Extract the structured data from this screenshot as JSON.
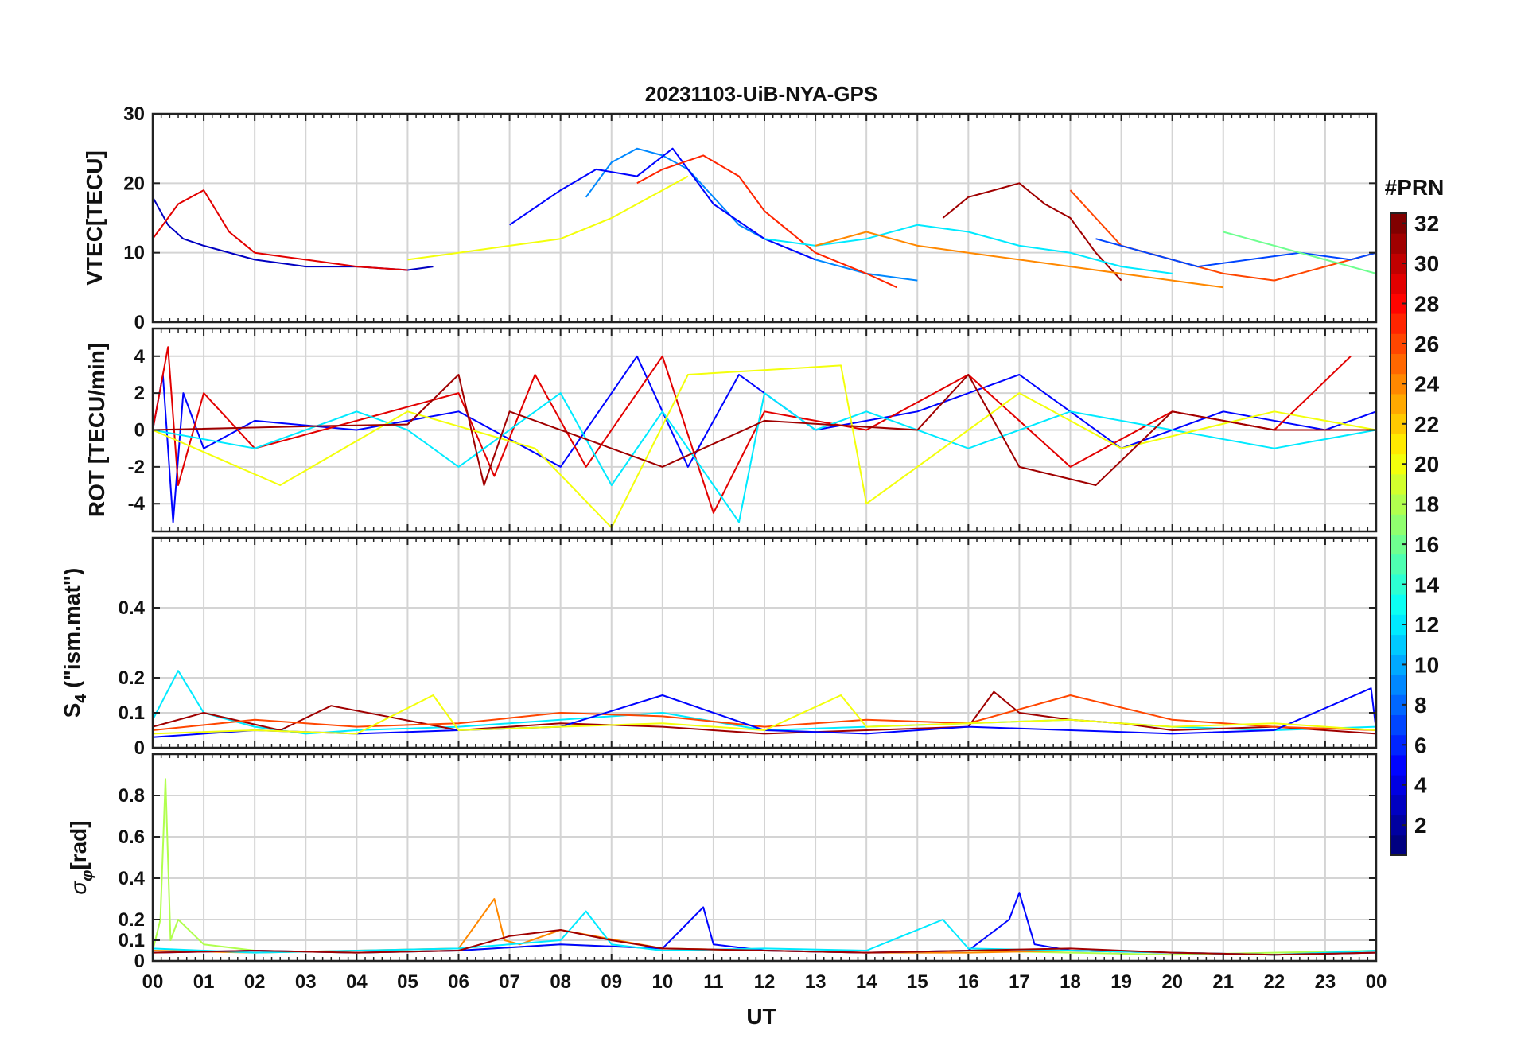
{
  "figure": {
    "title": "20231103-UiB-NYA-GPS",
    "xlabel": "UT",
    "colorbar_title": "#PRN"
  },
  "chart_data": [
    {
      "type": "line",
      "panel": "vtec",
      "ylabel": "VTEC[TECU]",
      "ylim": [
        0,
        30
      ],
      "yticks": [
        0,
        10,
        20,
        30
      ],
      "xlim": [
        0,
        24
      ],
      "xtick_labels": [
        "00",
        "01",
        "02",
        "03",
        "04",
        "05",
        "06",
        "07",
        "08",
        "09",
        "10",
        "11",
        "12",
        "13",
        "14",
        "15",
        "16",
        "17",
        "18",
        "19",
        "20",
        "21",
        "22",
        "23",
        "00"
      ],
      "grid": true,
      "series": [
        {
          "prn": 3,
          "x": [
            0.0,
            0.3,
            0.6,
            1.0,
            2.0,
            3.0,
            4.0,
            5.0,
            5.5
          ],
          "y": [
            18,
            14,
            12,
            11,
            9,
            8,
            8,
            7.5,
            8
          ]
        },
        {
          "prn": 29,
          "x": [
            0.0,
            0.5,
            1.0,
            1.5,
            2.0,
            3.0,
            4.0,
            5.0
          ],
          "y": [
            12,
            17,
            19,
            13,
            10,
            9,
            8,
            7.5
          ]
        },
        {
          "prn": 9,
          "x": [
            8.5,
            9.0,
            9.5,
            10.0,
            10.5,
            11.0,
            11.5,
            12.0,
            13.0,
            14.0,
            15.0
          ],
          "y": [
            18,
            23,
            25,
            24,
            22,
            18,
            14,
            12,
            9,
            7,
            6
          ]
        },
        {
          "prn": 5,
          "x": [
            7.0,
            8.0,
            8.7,
            9.5,
            10.2,
            11.0,
            12.0,
            13.0
          ],
          "y": [
            14,
            19,
            22,
            21,
            25,
            17,
            12,
            9
          ]
        },
        {
          "prn": 27,
          "x": [
            9.5,
            10.0,
            10.8,
            11.5,
            12.0,
            13.0,
            14.0,
            14.6
          ],
          "y": [
            20,
            22,
            24,
            21,
            16,
            10,
            7,
            5
          ]
        },
        {
          "prn": 31,
          "x": [
            15.5,
            16.0,
            16.5,
            17.0,
            17.5,
            18.0,
            18.5,
            19.0
          ],
          "y": [
            15,
            18,
            19,
            20,
            17,
            15,
            10,
            6
          ]
        },
        {
          "prn": 20,
          "x": [
            5.0,
            6.0,
            7.0,
            8.0,
            9.0,
            10.0,
            10.5
          ],
          "y": [
            9,
            10,
            11,
            12,
            15,
            19,
            21
          ]
        },
        {
          "prn": 12,
          "x": [
            12.0,
            13.0,
            14.0,
            15.0,
            16.0,
            17.0,
            18.0,
            19.0,
            20.0
          ],
          "y": [
            12,
            11,
            12,
            14,
            13,
            11,
            10,
            8,
            7
          ]
        },
        {
          "prn": 24,
          "x": [
            13.0,
            14.0,
            15.0,
            16.0,
            17.0,
            18.0,
            19.0,
            20.0,
            21.0
          ],
          "y": [
            11,
            13,
            11,
            10,
            9,
            8,
            7,
            6,
            5
          ]
        },
        {
          "prn": 26,
          "x": [
            18.0,
            18.5,
            19.0,
            20.0,
            21.0,
            22.0,
            23.0,
            24.0
          ],
          "y": [
            19,
            15,
            11,
            9,
            7,
            6,
            8,
            10
          ]
        },
        {
          "prn": 7,
          "x": [
            18.5,
            19.5,
            20.5,
            21.5,
            22.5,
            23.5,
            24.0
          ],
          "y": [
            12,
            10,
            8,
            9,
            10,
            9,
            10
          ]
        },
        {
          "prn": 16,
          "x": [
            21.0,
            21.5,
            22.0,
            23.0,
            24.0
          ],
          "y": [
            13,
            12,
            11,
            9,
            7
          ]
        }
      ]
    },
    {
      "type": "line",
      "panel": "rot",
      "ylabel": "ROT [TECU/min]",
      "ylim": [
        -5.5,
        5.5
      ],
      "yticks": [
        -4,
        -2,
        0,
        2,
        4
      ],
      "xlim": [
        0,
        24
      ],
      "grid": true,
      "series": [
        {
          "prn": 5,
          "x": [
            0.0,
            0.2,
            0.4,
            0.6,
            1.0,
            2.0,
            4.0,
            6.0,
            8.0,
            9.5,
            10.5,
            11.5,
            13.0,
            15.0,
            17.0,
            19.0,
            21.0,
            23.0,
            24.0
          ],
          "y": [
            0,
            3,
            -5,
            2,
            -1,
            0.5,
            0,
            1,
            -2,
            4,
            -2,
            3,
            0,
            1,
            3,
            -1,
            1,
            0,
            1
          ]
        },
        {
          "prn": 29,
          "x": [
            0.0,
            0.3,
            0.5,
            1.0,
            2.0,
            4.0,
            6.0,
            6.7,
            7.5,
            8.5,
            10.0,
            11.0,
            12.0,
            14.0,
            16.0,
            18.0,
            20.0,
            22.0,
            23.5
          ],
          "y": [
            0,
            4.5,
            -3,
            2,
            -1,
            0.5,
            2,
            -2.5,
            3,
            -2,
            4,
            -4.5,
            1,
            0,
            3,
            -2,
            1,
            0,
            4
          ]
        },
        {
          "prn": 12,
          "x": [
            0.0,
            2.0,
            4.0,
            5.0,
            6.0,
            8.0,
            9.0,
            10.0,
            11.5,
            12.0,
            13.0,
            14.0,
            16.0,
            18.0,
            20.0,
            22.0,
            24.0
          ],
          "y": [
            0,
            -1,
            1,
            0,
            -2,
            2,
            -3,
            1,
            -5,
            2,
            0,
            1,
            -1,
            1,
            0,
            -1,
            0
          ]
        },
        {
          "prn": 20,
          "x": [
            0.0,
            2.5,
            5.0,
            7.5,
            9.0,
            10.5,
            13.5,
            14.0,
            17.0,
            19.0,
            22.0,
            24.0
          ],
          "y": [
            0,
            -3,
            1,
            -1,
            -5.3,
            3,
            3.5,
            -4,
            2,
            -1,
            1,
            0
          ]
        },
        {
          "prn": 31,
          "x": [
            0.0,
            3.0,
            5.0,
            6.0,
            6.5,
            7.0,
            10.0,
            12.0,
            15.0,
            16.0,
            17.0,
            18.5,
            20.0,
            22.0,
            24.0
          ],
          "y": [
            0,
            0.2,
            0.3,
            3,
            -3,
            1,
            -2,
            0.5,
            0,
            3,
            -2,
            -3,
            1,
            0,
            0
          ]
        }
      ]
    },
    {
      "type": "line",
      "panel": "s4",
      "ylabel": "S4 (\"ism.mat\")",
      "ylabel_main": "S",
      "ylabel_sub": "4",
      "ylabel_rest": " (\"ism.mat\")",
      "ylim": [
        0,
        0.6
      ],
      "yticks": [
        0,
        0.1,
        0.2,
        0.4
      ],
      "xlim": [
        0,
        24
      ],
      "grid": true,
      "series": [
        {
          "prn": 12,
          "x": [
            0.0,
            0.5,
            1.0,
            2.0,
            3.0,
            4.0,
            6.0,
            8.0,
            10.0,
            12.0,
            14.0,
            16.0,
            18.0,
            20.0,
            22.0,
            24.0
          ],
          "y": [
            0.08,
            0.22,
            0.1,
            0.06,
            0.04,
            0.05,
            0.06,
            0.08,
            0.1,
            0.05,
            0.06,
            0.07,
            0.08,
            0.06,
            0.05,
            0.06
          ]
        },
        {
          "prn": 31,
          "x": [
            0.0,
            1.0,
            2.5,
            3.5,
            6.0,
            8.0,
            10.0,
            12.0,
            14.0,
            16.0,
            16.5,
            17.0,
            18.0,
            19.0,
            20.0,
            22.0,
            24.0
          ],
          "y": [
            0.06,
            0.1,
            0.05,
            0.12,
            0.05,
            0.07,
            0.06,
            0.04,
            0.05,
            0.06,
            0.16,
            0.1,
            0.08,
            0.07,
            0.05,
            0.06,
            0.04
          ]
        },
        {
          "prn": 26,
          "x": [
            0.0,
            2.0,
            4.0,
            6.0,
            8.0,
            10.0,
            12.0,
            14.0,
            16.0,
            18.0,
            20.0,
            22.0,
            24.0
          ],
          "y": [
            0.05,
            0.08,
            0.06,
            0.07,
            0.1,
            0.09,
            0.06,
            0.08,
            0.07,
            0.15,
            0.08,
            0.06,
            0.05
          ]
        },
        {
          "prn": 5,
          "x": [
            0.0,
            2.0,
            4.0,
            6.0,
            8.0,
            10.0,
            12.0,
            14.0,
            16.0,
            18.0,
            20.0,
            22.0,
            23.9,
            24.0
          ],
          "y": [
            0.03,
            0.05,
            0.04,
            0.05,
            0.06,
            0.15,
            0.05,
            0.04,
            0.06,
            0.05,
            0.04,
            0.05,
            0.17,
            0.05
          ]
        },
        {
          "prn": 20,
          "x": [
            0.0,
            2.0,
            4.0,
            5.5,
            6.0,
            8.0,
            10.0,
            12.0,
            13.5,
            14.0,
            16.0,
            18.0,
            20.0,
            22.0,
            24.0
          ],
          "y": [
            0.04,
            0.05,
            0.04,
            0.15,
            0.05,
            0.06,
            0.07,
            0.05,
            0.15,
            0.06,
            0.07,
            0.08,
            0.06,
            0.07,
            0.05
          ]
        }
      ]
    },
    {
      "type": "line",
      "panel": "sigma_phi",
      "ylabel": "σφ[rad]",
      "ylabel_main": "σ",
      "ylabel_sub": "φ",
      "ylabel_rest": "[rad]",
      "ylim": [
        0,
        1.0
      ],
      "yticks": [
        0,
        0.1,
        0.2,
        0.4,
        0.6,
        0.8
      ],
      "xlim": [
        0,
        24
      ],
      "grid": true,
      "series": [
        {
          "prn": 18,
          "x": [
            0.0,
            0.15,
            0.25,
            0.35,
            0.5,
            1.0,
            2.0,
            4.0,
            6.0,
            8.0,
            10.0,
            12.0,
            14.0,
            16.0,
            18.0,
            20.0,
            22.0,
            24.0
          ],
          "y": [
            0.05,
            0.2,
            0.88,
            0.1,
            0.2,
            0.08,
            0.05,
            0.04,
            0.05,
            0.08,
            0.06,
            0.05,
            0.04,
            0.05,
            0.04,
            0.03,
            0.04,
            0.05
          ]
        },
        {
          "prn": 24,
          "x": [
            0.0,
            2.0,
            4.0,
            6.0,
            6.7,
            6.9,
            7.2,
            8.0,
            10.0,
            12.0,
            14.0,
            16.0,
            18.0,
            20.0,
            22.0,
            24.0
          ],
          "y": [
            0.05,
            0.04,
            0.05,
            0.06,
            0.3,
            0.1,
            0.08,
            0.15,
            0.06,
            0.05,
            0.04,
            0.04,
            0.05,
            0.04,
            0.03,
            0.04
          ]
        },
        {
          "prn": 5,
          "x": [
            0.0,
            2.0,
            4.0,
            6.0,
            8.0,
            10.0,
            10.8,
            11.0,
            12.0,
            14.0,
            16.0,
            16.8,
            17.0,
            17.3,
            18.0,
            20.0,
            22.0,
            24.0
          ],
          "y": [
            0.04,
            0.05,
            0.04,
            0.05,
            0.08,
            0.06,
            0.26,
            0.08,
            0.05,
            0.04,
            0.05,
            0.2,
            0.33,
            0.08,
            0.05,
            0.04,
            0.03,
            0.04
          ]
        },
        {
          "prn": 12,
          "x": [
            0.0,
            2.0,
            4.0,
            6.0,
            8.0,
            8.5,
            9.0,
            10.0,
            12.0,
            14.0,
            15.5,
            16.0,
            18.0,
            20.0,
            22.0,
            24.0
          ],
          "y": [
            0.06,
            0.04,
            0.05,
            0.06,
            0.1,
            0.24,
            0.08,
            0.05,
            0.06,
            0.05,
            0.2,
            0.06,
            0.05,
            0.04,
            0.03,
            0.05
          ]
        },
        {
          "prn": 31,
          "x": [
            0.0,
            2.0,
            4.0,
            6.0,
            7.0,
            8.0,
            9.0,
            10.0,
            12.0,
            14.0,
            16.0,
            18.0,
            20.0,
            22.0,
            24.0
          ],
          "y": [
            0.04,
            0.05,
            0.04,
            0.05,
            0.12,
            0.15,
            0.1,
            0.06,
            0.05,
            0.04,
            0.05,
            0.06,
            0.04,
            0.03,
            0.04
          ]
        }
      ]
    },
    {
      "type": "heatmap",
      "panel": "colorbar",
      "title": "#PRN",
      "clim": [
        1,
        32
      ],
      "ticks": [
        2,
        4,
        6,
        8,
        10,
        12,
        14,
        16,
        18,
        20,
        22,
        24,
        26,
        28,
        30,
        32
      ],
      "colormap": "jet"
    }
  ]
}
